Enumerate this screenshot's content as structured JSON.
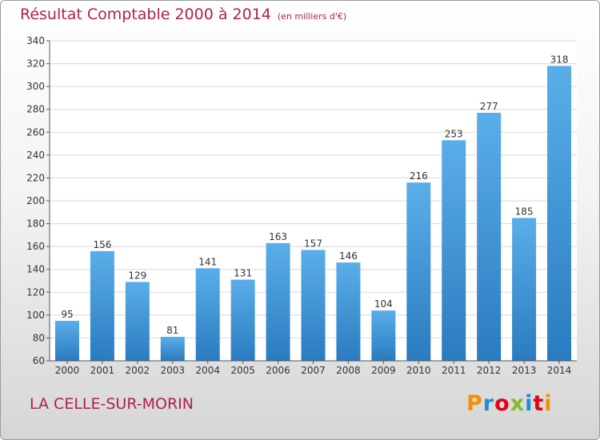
{
  "chart_data": {
    "type": "bar",
    "title": "Résultat Comptable 2000 à 2014",
    "subtitle": "(en milliers d'€)",
    "categories": [
      "2000",
      "2001",
      "2002",
      "2003",
      "2004",
      "2005",
      "2006",
      "2007",
      "2008",
      "2009",
      "2010",
      "2011",
      "2012",
      "2013",
      "2014"
    ],
    "values": [
      95,
      156,
      129,
      81,
      141,
      131,
      163,
      157,
      146,
      104,
      216,
      253,
      277,
      185,
      318
    ],
    "ylim": [
      60,
      340
    ],
    "yticks": [
      60,
      80,
      100,
      120,
      140,
      160,
      180,
      200,
      220,
      240,
      260,
      280,
      300,
      320,
      340
    ],
    "grid": true,
    "bar_color_top": "#5aaee8",
    "bar_color_bottom": "#2a7bc0"
  },
  "footer": {
    "commune": "LA CELLE-SUR-MORIN"
  },
  "logo": {
    "text": "Proxiti",
    "colors": [
      "#f39200",
      "#1f8fd4",
      "#e2001a",
      "#88b929",
      "#1f8fd4",
      "#e2001a",
      "#f39200"
    ]
  },
  "colors": {
    "title": "#b0214a",
    "grid": "#d8d8d8",
    "axis_text": "#333333"
  }
}
